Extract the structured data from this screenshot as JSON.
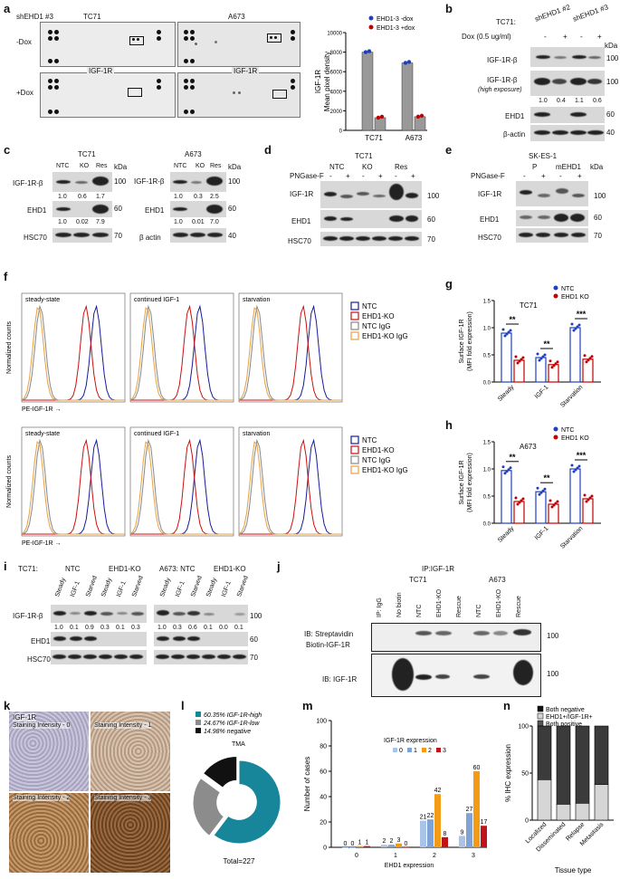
{
  "panels": {
    "a": "a",
    "b": "b",
    "c": "c",
    "d": "d",
    "e": "e",
    "f": "f",
    "g": "g",
    "h": "h",
    "i": "i",
    "j": "j",
    "k": "k",
    "l": "l",
    "m": "m",
    "n": "n"
  },
  "a": {
    "construct": "shEHD1 #3",
    "cell1": "TC71",
    "cell2": "A673",
    "row1": "-Dox",
    "row2": "+Dox",
    "target": "IGF-1R"
  },
  "a_chart": {
    "chart_data": {
      "type": "bar",
      "categories": [
        "TC71",
        "A673"
      ],
      "series": [
        {
          "name": "EHD1-3 -dox",
          "values": [
            8000,
            6900
          ],
          "color": "#1f3fbf"
        },
        {
          "name": "EHD1-3 +dox",
          "values": [
            1300,
            1400
          ],
          "color": "#c00000"
        }
      ],
      "ylabel": "IGF-1R\nMean pixel density",
      "ylim": [
        0,
        10000
      ],
      "yticks": [
        "0",
        "2000",
        "4000",
        "6000",
        "8000",
        "10000"
      ]
    }
  },
  "b": {
    "title": "TC71:",
    "sh2": "shEHD1 #2",
    "sh3": "shEHD1 #3",
    "dox": "Dox (0.5 ug/ml)",
    "signs": [
      "-",
      "+",
      "-",
      "+"
    ],
    "kda": "kDa",
    "r1": "IGF-1R-β",
    "r2": "IGF-1R-β",
    "r2b": "(high exposure)",
    "r3": "EHD1",
    "r4": "β-actin",
    "q": [
      "1.0",
      "0.4",
      "1.1",
      "0.6"
    ],
    "m100a": "100",
    "m100b": "100",
    "m60": "60",
    "m40": "40"
  },
  "c": {
    "cell1": "TC71",
    "cell2": "A673",
    "lanes": [
      "NTC",
      "KO",
      "Res"
    ],
    "kda": "kDa",
    "r1": "IGF-1R-β",
    "r2": "EHD1",
    "r3a": "HSC70",
    "r3b": "β actin",
    "q1a": [
      "1.0",
      "0.6",
      "1.7"
    ],
    "q2a": [
      "1.0",
      "0.02",
      "7.9"
    ],
    "q1b": [
      "1.0",
      "0.3",
      "2.5"
    ],
    "q2b": [
      "1.0",
      "0.01",
      "7.0"
    ],
    "m100": "100",
    "m60": "60",
    "m70": "70",
    "m40": "40"
  },
  "d": {
    "cell": "TC71",
    "png": "PNGase-F",
    "lanes": [
      "NTC",
      "KO",
      "Res"
    ],
    "signs": [
      "-",
      "+",
      "-",
      "+",
      "-",
      "+"
    ],
    "r1": "IGF-1R",
    "r2": "EHD1",
    "r3": "HSC70",
    "m100": "100",
    "m60": "60",
    "m70": "70"
  },
  "e": {
    "cell": "SK-ES-1",
    "png": "PNGase-F",
    "lanes": [
      "P",
      "mEHD1"
    ],
    "signs": [
      "-",
      "+",
      "-",
      "+"
    ],
    "kda": "kDa",
    "r1": "IGF-1R",
    "r2": "EHD1",
    "r3": "HSC70",
    "m100": "100",
    "m60": "60",
    "m70": "70"
  },
  "f": {
    "cond": [
      "steady-state",
      "continued IGF-1",
      "starvation"
    ],
    "ylabel": "Normalized counts",
    "xlabel": "PE-IGF-1R",
    "legend": [
      "NTC",
      "EHD1-KO",
      "NTC IgG",
      "EHD1-KO IgG"
    ]
  },
  "g": {
    "cell": "TC71",
    "ylabel": "Surface IGF-1R\n(MFI fold expression)",
    "legend": [
      "NTC",
      "EHD1 KO"
    ],
    "cats": [
      "Steady",
      "IGF-1",
      "Starvation"
    ],
    "yticks": [
      "0.0",
      "0.5",
      "1.0",
      "1.5"
    ],
    "sig": [
      "**",
      "**",
      "***"
    ],
    "chart_data": {
      "type": "bar",
      "categories": [
        "Steady",
        "IGF-1",
        "Starvation"
      ],
      "series": [
        {
          "name": "NTC",
          "values": [
            0.9,
            0.45,
            1.0
          ]
        },
        {
          "name": "EHD1 KO",
          "values": [
            0.4,
            0.32,
            0.42
          ]
        }
      ],
      "ylim": [
        0,
        1.5
      ]
    }
  },
  "h": {
    "cell": "A673",
    "ylabel": "Surface IGF-1R\n(MFI fold expression)",
    "legend": [
      "NTC",
      "EHD1 KO"
    ],
    "cats": [
      "Steady",
      "IGF-1",
      "Starvation"
    ],
    "yticks": [
      "0.0",
      "0.5",
      "1.0",
      "1.5"
    ],
    "sig": [
      "**",
      "**",
      "***"
    ],
    "chart_data": {
      "type": "bar",
      "categories": [
        "Steady",
        "IGF-1",
        "Starvation"
      ],
      "series": [
        {
          "name": "NTC",
          "values": [
            0.97,
            0.58,
            1.0
          ]
        },
        {
          "name": "EHD1 KO",
          "values": [
            0.4,
            0.35,
            0.45
          ]
        }
      ],
      "ylim": [
        0,
        1.5
      ]
    }
  },
  "i": {
    "t1": "TC71:",
    "ntc": "NTC",
    "ko": "EHD1-KO",
    "t2": "A673: NTC",
    "ko2": "EHD1-KO",
    "lanes": [
      "Steady",
      "IGF-1",
      "Starved",
      "Steady",
      "IGF-1",
      "Starved",
      "Steady",
      "IGF-1",
      "Starved",
      "Steady",
      "IGF-1",
      "Starved"
    ],
    "r1": "IGF-1R-β",
    "r2": "EHD1",
    "r3": "HSC70",
    "q": [
      "1.0",
      "0.1",
      "0.9",
      "0.3",
      "0.1",
      "0.3",
      "1.0",
      "0.3",
      "0.6",
      "0.1",
      "0.0",
      "0.1"
    ],
    "m100": "100",
    "m60": "60",
    "m70": "70"
  },
  "j": {
    "ip": "IP:IGF-1R",
    "cell1": "TC71",
    "cell2": "A673",
    "lanes": [
      "IP: IgG",
      "No biotin",
      "NTC",
      "EHD1-KO",
      "Rescue",
      "NTC",
      "EHD1-KO",
      "Rescue"
    ],
    "ib1": "IB: Streptavidin",
    "ib1b": "Biotin-IGF-1R",
    "ib2": "IB: IGF-1R",
    "m100a": "100",
    "m100b": "100"
  },
  "k": {
    "title": "IGF-1R",
    "labels": [
      "Staining Intensity - 0",
      "Staining Intensity - 1",
      "Staining Intensity - 2",
      "Staining Intensity - 3"
    ]
  },
  "l": {
    "chart_data": {
      "type": "pie",
      "values": [
        60.35,
        24.67,
        14.98
      ],
      "labels": [
        "60.35% IGF-1R-high",
        "24.67% IGF-1R-low",
        "14.98% negative"
      ],
      "colors": [
        "#17869a",
        "#8c8c8c",
        "#111111"
      ]
    },
    "tma": "TMA",
    "total": "Total=227"
  },
  "m": {
    "chart_data": {
      "type": "bar",
      "categories": [
        "0",
        "1",
        "2",
        "3"
      ],
      "series": [
        {
          "name": "0",
          "values": [
            0,
            2,
            21,
            9
          ]
        },
        {
          "name": "1",
          "values": [
            0,
            2,
            22,
            27
          ]
        },
        {
          "name": "2",
          "values": [
            1,
            3,
            42,
            60
          ]
        },
        {
          "name": "3",
          "values": [
            1,
            0,
            8,
            17
          ]
        }
      ],
      "colors": [
        "#a9c4e8",
        "#7fa3d6",
        "#f39a17",
        "#c1141a"
      ],
      "ylim": [
        0,
        100
      ]
    },
    "legend_title": "IGF-1R expression",
    "ylabel": "Number of cases",
    "xlabel": "EHD1 expression",
    "yticks": [
      "0",
      "20",
      "40",
      "60",
      "80",
      "100"
    ]
  },
  "n": {
    "chart_data": {
      "type": "bar",
      "categories": [
        "Localized",
        "Disseminated",
        "Relapse",
        "Metastasis"
      ],
      "series": [
        {
          "name": "Both positive",
          "values": [
            43,
            17,
            18,
            38
          ]
        },
        {
          "name": "EHD1+/IGF-1R+",
          "values": [
            0,
            0,
            0,
            0
          ]
        },
        {
          "name": "Both negative",
          "values": [
            57,
            83,
            82,
            62
          ]
        }
      ],
      "ylim": [
        0,
        100
      ]
    },
    "legend": [
      "Both negative",
      "EHD1+/IGF-1R+",
      "Both positive"
    ],
    "ylabel": "% IHC expression",
    "xlabel": "Tissue type",
    "yticks": [
      "0",
      "50",
      "100"
    ]
  }
}
